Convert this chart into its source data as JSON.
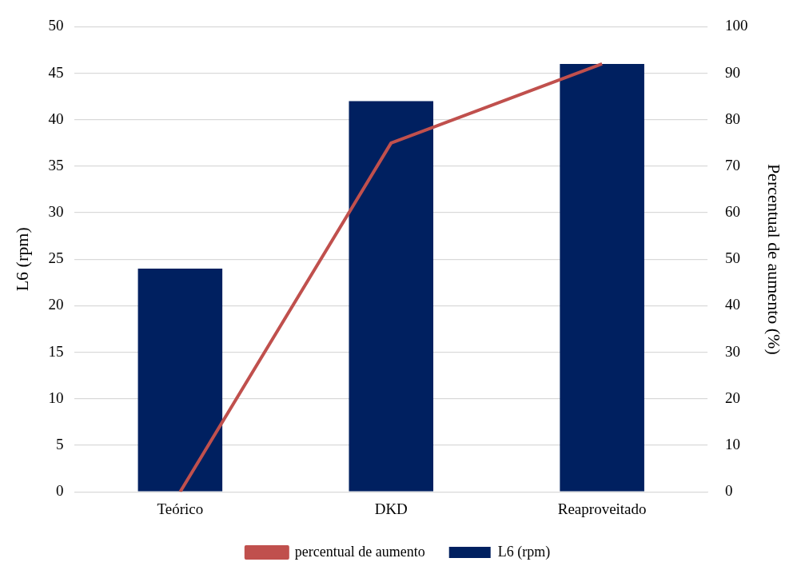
{
  "chart_data": {
    "type": "bar",
    "categories": [
      "Teórico",
      "DKD",
      "Reaproveitado"
    ],
    "series": [
      {
        "name": "L6 (rpm)",
        "color": "#002060",
        "values": [
          24,
          42,
          46
        ]
      },
      {
        "name": "percentual de aumento",
        "type": "line",
        "axis": "y2",
        "color": "#c0504d",
        "values": [
          0,
          75,
          92
        ]
      }
    ],
    "ylabel": "L6 (rpm)",
    "y2label": "Percentual de aumento (%)",
    "ylim": [
      0,
      50
    ],
    "yticks": [
      0,
      5,
      10,
      15,
      20,
      25,
      30,
      35,
      40,
      45,
      50
    ],
    "y2lim": [
      0,
      100
    ],
    "y2ticks": [
      0,
      10,
      20,
      30,
      40,
      50,
      60,
      70,
      80,
      90,
      100
    ],
    "grid": "y",
    "legend": "bottom",
    "marker": "none"
  }
}
